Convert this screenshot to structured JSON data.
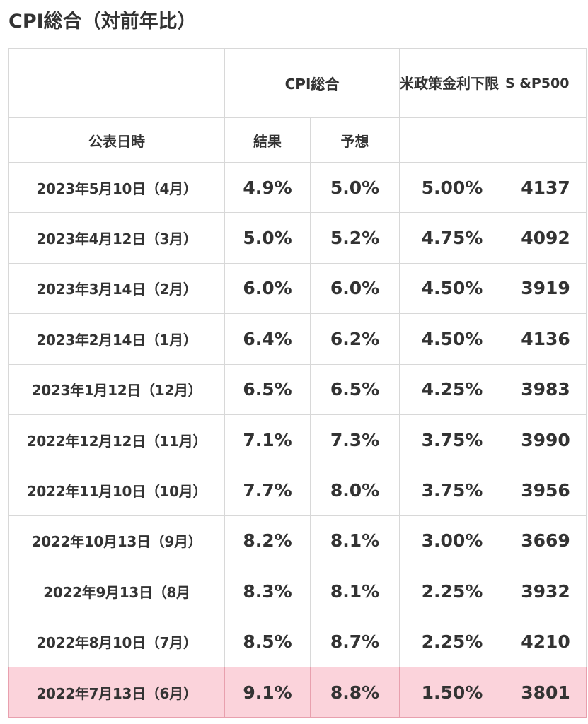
{
  "title": "CPI総合（対前年比）",
  "headers": {
    "cpi_total": "CPI総合",
    "fed_rate": "米政策金利下限",
    "sp500": "S &P500",
    "date": "公表日時",
    "result": "結果",
    "forecast": "予想"
  },
  "rows": [
    {
      "date": "2023年5月10日（4月）",
      "result": "4.9%",
      "forecast": "5.0%",
      "rate": "5.00%",
      "sp500": "4137"
    },
    {
      "date": "2023年4月12日（3月）",
      "result": "5.0%",
      "forecast": "5.2%",
      "rate": "4.75%",
      "sp500": "4092"
    },
    {
      "date": "2023年3月14日（2月）",
      "result": "6.0%",
      "forecast": "6.0%",
      "rate": "4.50%",
      "sp500": "3919"
    },
    {
      "date": "2023年2月14日（1月）",
      "result": "6.4%",
      "forecast": "6.2%",
      "rate": "4.50%",
      "sp500": "4136"
    },
    {
      "date": "2023年1月12日（12月）",
      "result": "6.5%",
      "forecast": "6.5%",
      "rate": "4.25%",
      "sp500": "3983"
    },
    {
      "date": "2022年12月12日（11月）",
      "result": "7.1%",
      "forecast": "7.3%",
      "rate": "3.75%",
      "sp500": "3990"
    },
    {
      "date": "2022年11月10日（10月）",
      "result": "7.7%",
      "forecast": "8.0%",
      "rate": "3.75%",
      "sp500": "3956"
    },
    {
      "date": "2022年10月13日（9月）",
      "result": "8.2%",
      "forecast": "8.1%",
      "rate": "3.00%",
      "sp500": "3669"
    },
    {
      "date": "2022年9月13日（8月",
      "result": "8.3%",
      "forecast": "8.1%",
      "rate": "2.25%",
      "sp500": "3932"
    },
    {
      "date": "2022年8月10日（7月）",
      "result": "8.5%",
      "forecast": "8.7%",
      "rate": "2.25%",
      "sp500": "4210"
    },
    {
      "date": "2022年7月13日（6月）",
      "result": "9.1%",
      "forecast": "8.8%",
      "rate": "1.50%",
      "sp500": "3801"
    }
  ],
  "colors": {
    "highlight_bg": "#fbd3db",
    "border": "#d8d8d8",
    "text": "#333333"
  }
}
